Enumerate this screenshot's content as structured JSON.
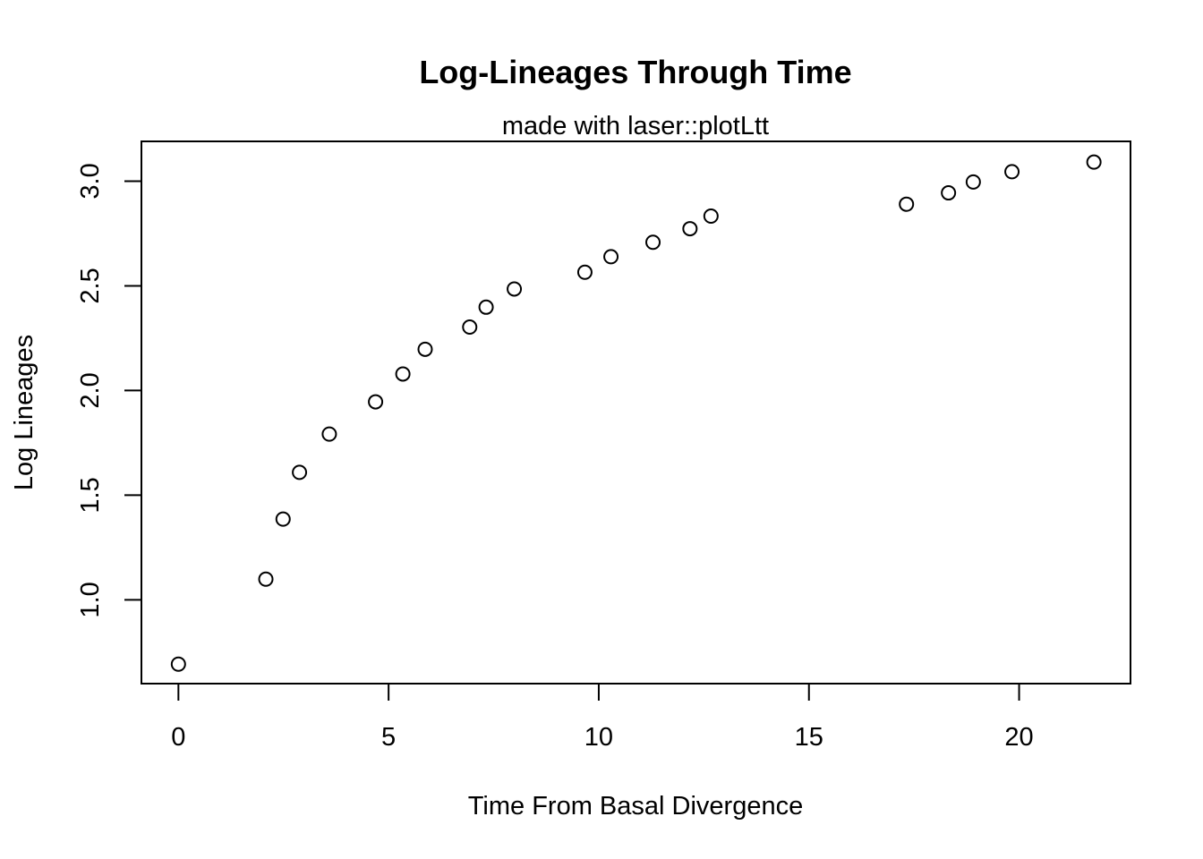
{
  "chart_data": {
    "type": "scatter",
    "title": "Log-Lineages Through Time",
    "subtitle": "made with laser::plotLtt",
    "xlabel": "Time From Basal Divergence",
    "ylabel": "Log Lineages",
    "xlim": [
      -0.88,
      22.65
    ],
    "ylim": [
      0.6,
      3.19
    ],
    "x_ticks": [
      0,
      5,
      10,
      15,
      20
    ],
    "x_tick_labels": [
      "0",
      "5",
      "10",
      "15",
      "20"
    ],
    "y_ticks": [
      1.0,
      1.5,
      2.0,
      2.5,
      3.0
    ],
    "y_tick_labels": [
      "1.0",
      "1.5",
      "2.0",
      "2.5",
      "3.0"
    ],
    "grid": false,
    "legend": "none",
    "marker": "open-circle",
    "color": "#000000",
    "points": [
      {
        "x": 0.0,
        "y": 0.693
      },
      {
        "x": 2.08,
        "y": 1.099
      },
      {
        "x": 2.49,
        "y": 1.386
      },
      {
        "x": 2.88,
        "y": 1.609
      },
      {
        "x": 3.59,
        "y": 1.792
      },
      {
        "x": 4.69,
        "y": 1.946
      },
      {
        "x": 5.34,
        "y": 2.079
      },
      {
        "x": 5.87,
        "y": 2.197
      },
      {
        "x": 6.93,
        "y": 2.303
      },
      {
        "x": 7.32,
        "y": 2.398
      },
      {
        "x": 7.99,
        "y": 2.485
      },
      {
        "x": 9.67,
        "y": 2.565
      },
      {
        "x": 10.29,
        "y": 2.639
      },
      {
        "x": 11.29,
        "y": 2.708
      },
      {
        "x": 12.17,
        "y": 2.773
      },
      {
        "x": 12.67,
        "y": 2.833
      },
      {
        "x": 17.32,
        "y": 2.89
      },
      {
        "x": 18.32,
        "y": 2.944
      },
      {
        "x": 18.91,
        "y": 2.996
      },
      {
        "x": 19.83,
        "y": 3.045
      },
      {
        "x": 21.78,
        "y": 3.091
      }
    ]
  }
}
